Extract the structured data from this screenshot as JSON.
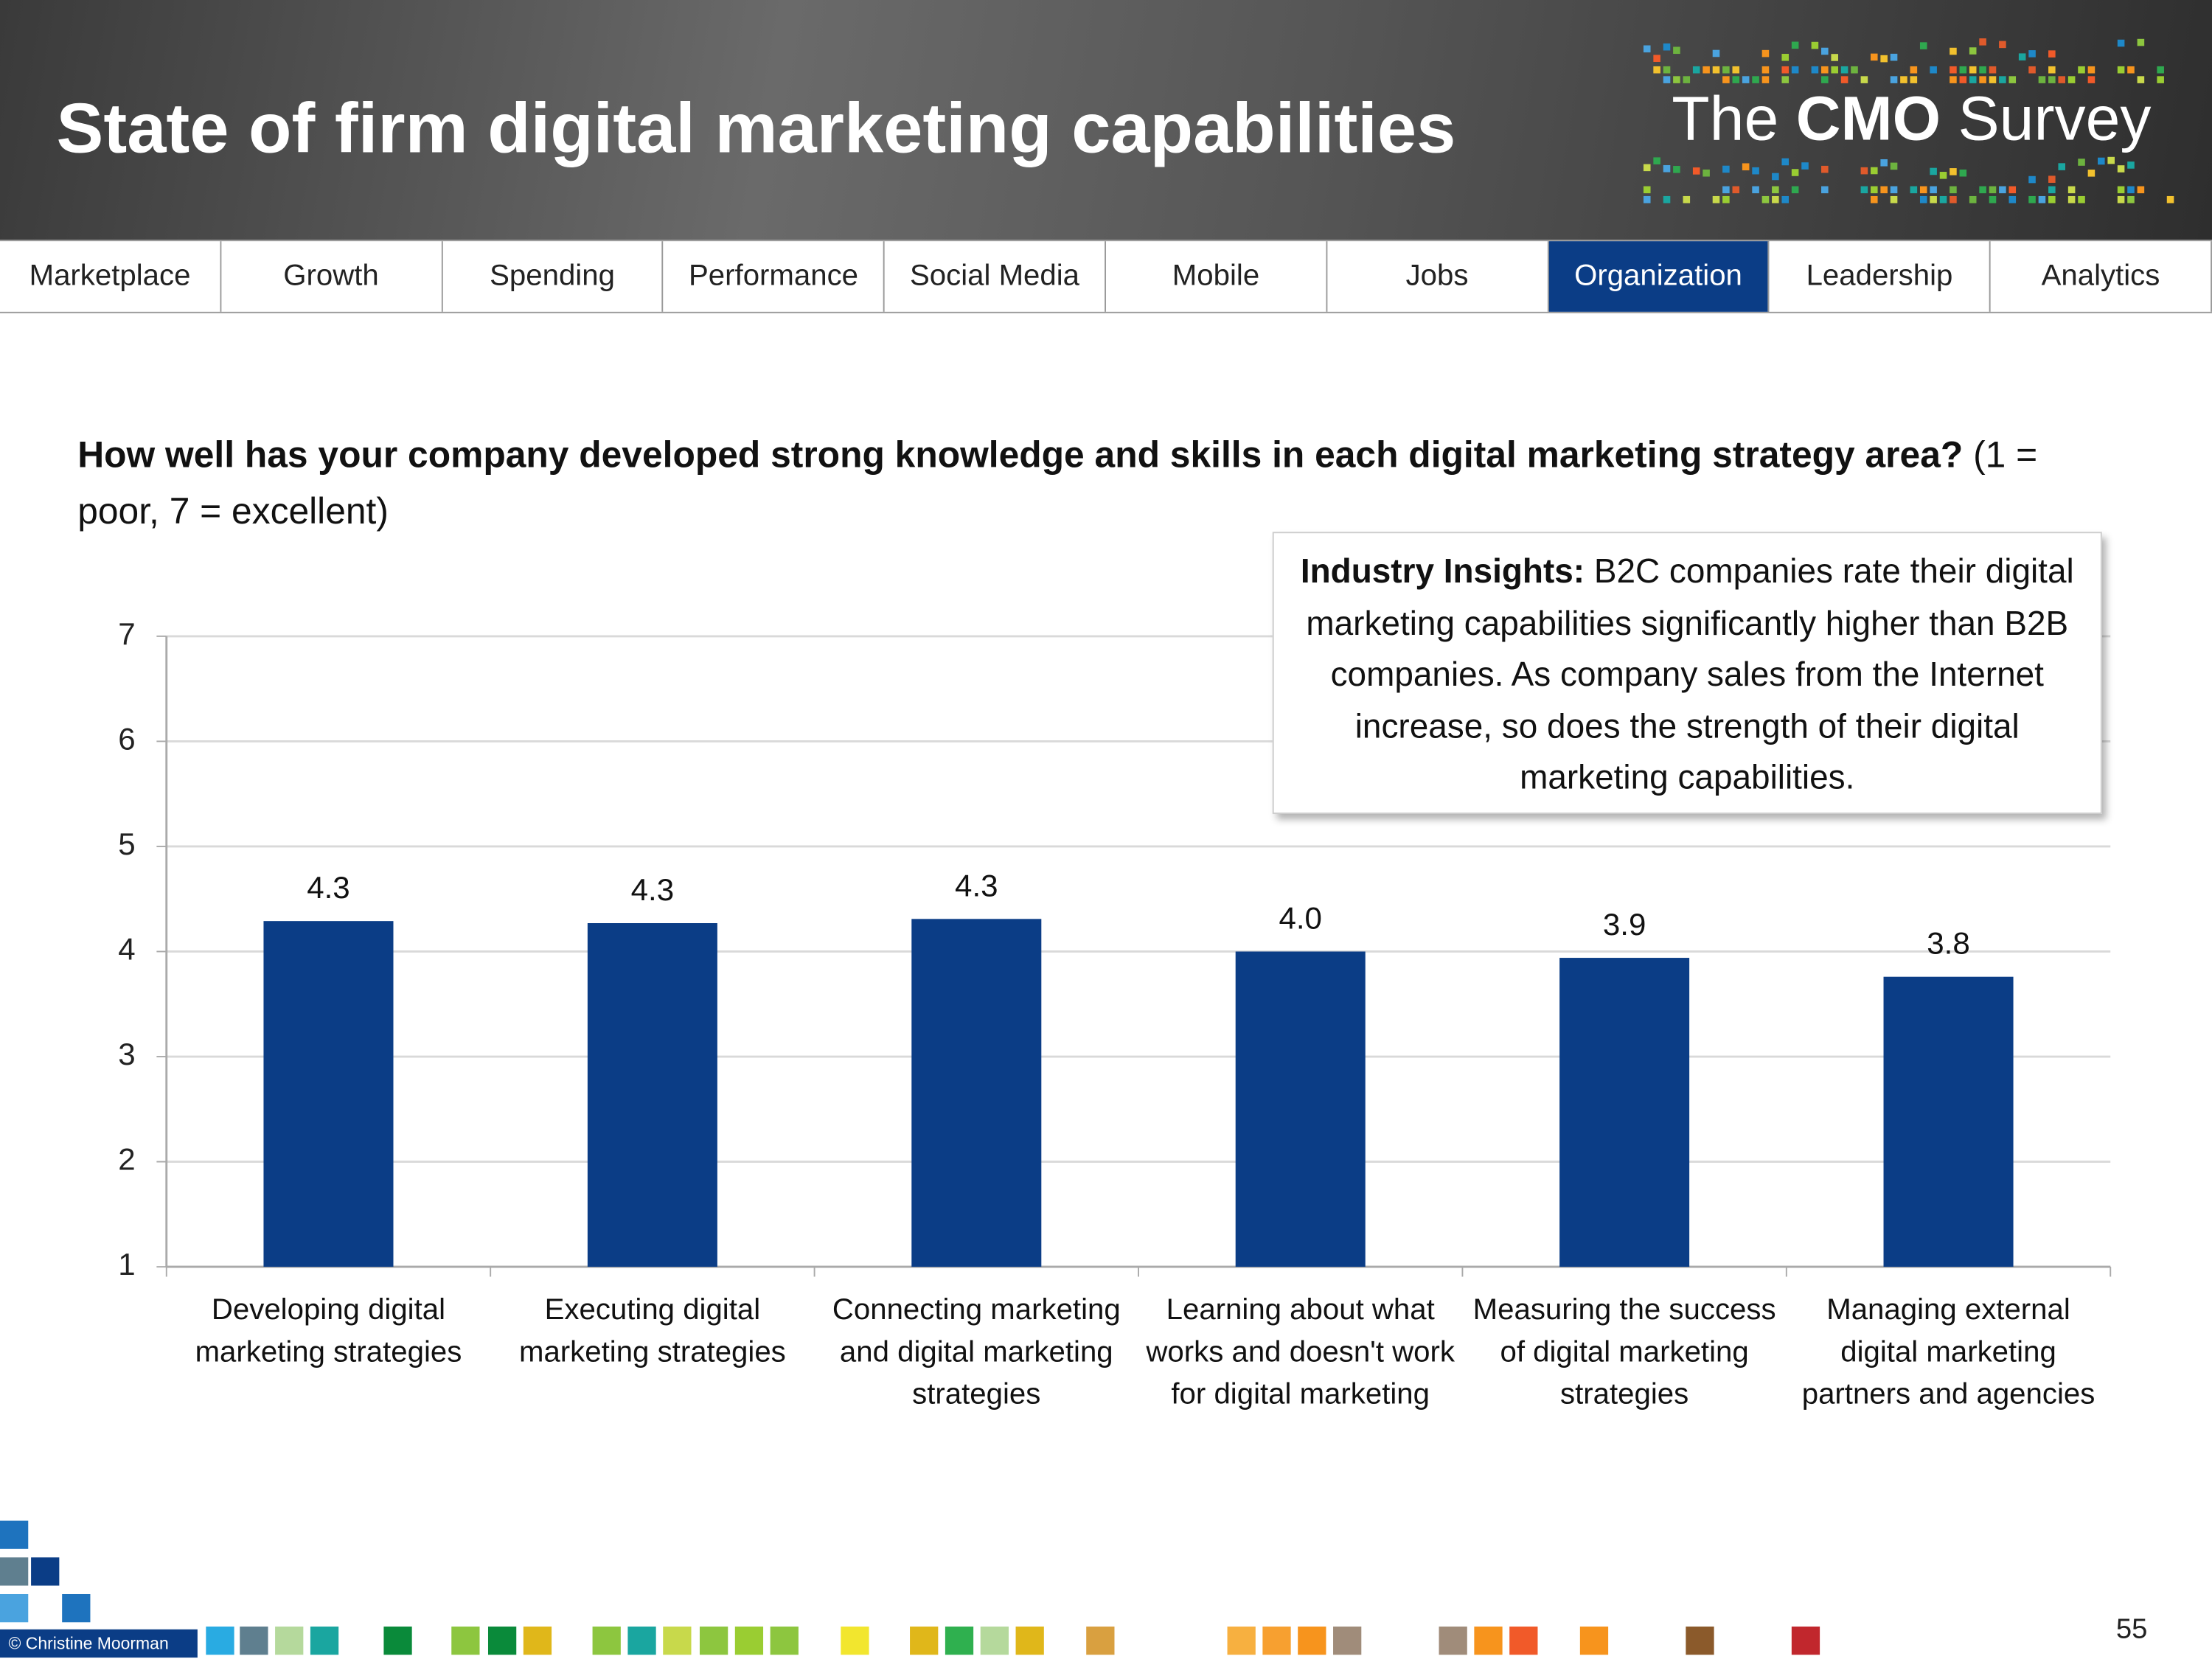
{
  "header": {
    "title": "State of firm digital marketing capabilities",
    "logo": [
      "The",
      "CMO",
      "Survey"
    ]
  },
  "nav": {
    "tabs": [
      "Marketplace",
      "Growth",
      "Spending",
      "Performance",
      "Social Media",
      "Mobile",
      "Jobs",
      "Organization",
      "Leadership",
      "Analytics"
    ],
    "active": 7
  },
  "question": {
    "bold": "How well has your company developed strong knowledge and skills in each digital marketing strategy area?",
    "text": "(1 = poor, 7 = excellent)"
  },
  "insight": {
    "bold": "Industry Insights:",
    "text": "B2C companies rate their digital marketing capabilities significantly higher than B2B companies. As company sales from the Internet increase, so does the strength of their digital marketing capabilities."
  },
  "chart_data": {
    "type": "bar",
    "categories": [
      "Developing digital marketing strategies",
      "Executing digital marketing strategies",
      "Connecting marketing and digital marketing strategies",
      "Learning about what works and doesn't work for digital marketing",
      "Measuring the success of digital marketing strategies",
      "Managing external digital marketing partners and agencies"
    ],
    "values": [
      4.29,
      4.27,
      4.31,
      4.0,
      3.94,
      3.76
    ],
    "value_labels": [
      "4.3",
      "4.3",
      "4.3",
      "4.0",
      "3.9",
      "3.8"
    ],
    "color": "#0b3d86",
    "ylim": [
      1,
      7
    ],
    "yticks": [
      1,
      2,
      3,
      4,
      5,
      6,
      7
    ],
    "grid": true
  },
  "footer": {
    "copyright": "© Christine Moorman",
    "page": "55"
  }
}
